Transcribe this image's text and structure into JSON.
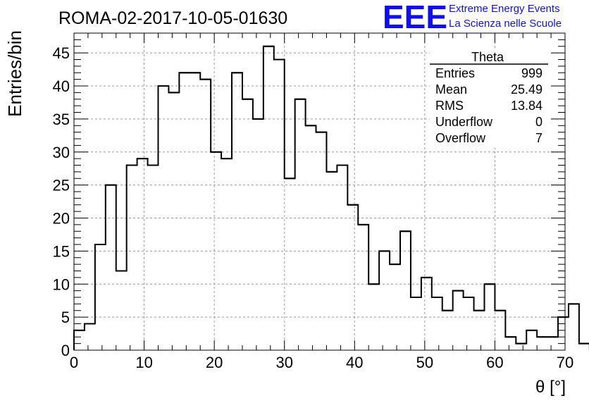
{
  "chart_data": {
    "type": "bar",
    "style": "step-histogram",
    "title": "ROMA-02-2017-10-05-01630",
    "xlabel": "θ [°]",
    "ylabel": "Entries/bin",
    "xlim": [
      0,
      70
    ],
    "ylim": [
      0,
      48
    ],
    "grid": true,
    "bin_width": 1.5,
    "x_start": 0,
    "values": [
      3,
      4,
      16,
      25,
      12,
      28,
      29,
      28,
      40,
      39,
      42,
      42,
      41,
      30,
      29,
      42,
      38,
      35,
      46,
      44,
      26,
      38,
      34,
      33,
      27,
      28,
      22,
      19,
      10,
      15,
      13,
      18,
      8,
      11,
      8,
      6,
      9,
      8,
      6,
      10,
      6,
      2,
      1,
      3,
      2,
      2,
      5,
      7,
      1
    ],
    "x_ticks": [
      "0",
      "10",
      "20",
      "30",
      "40",
      "50",
      "60",
      "70"
    ],
    "y_ticks": [
      "0",
      "5",
      "10",
      "15",
      "20",
      "25",
      "30",
      "35",
      "40",
      "45"
    ],
    "stats_box": {
      "title": "Theta",
      "rows": [
        {
          "label": "Entries",
          "value": "999"
        },
        {
          "label": "Mean",
          "value": "25.49"
        },
        {
          "label": "RMS",
          "value": "13.84"
        },
        {
          "label": "Underflow",
          "value": "0"
        },
        {
          "label": "Overflow",
          "value": "7"
        }
      ]
    },
    "colors": {
      "line": "#000000",
      "grid": "#9a9a9a",
      "logo": "#1010e6"
    }
  },
  "logo": {
    "mark": "EEE",
    "line1": "Extreme Energy Events",
    "line2": "La Scienza nelle Scuole"
  }
}
